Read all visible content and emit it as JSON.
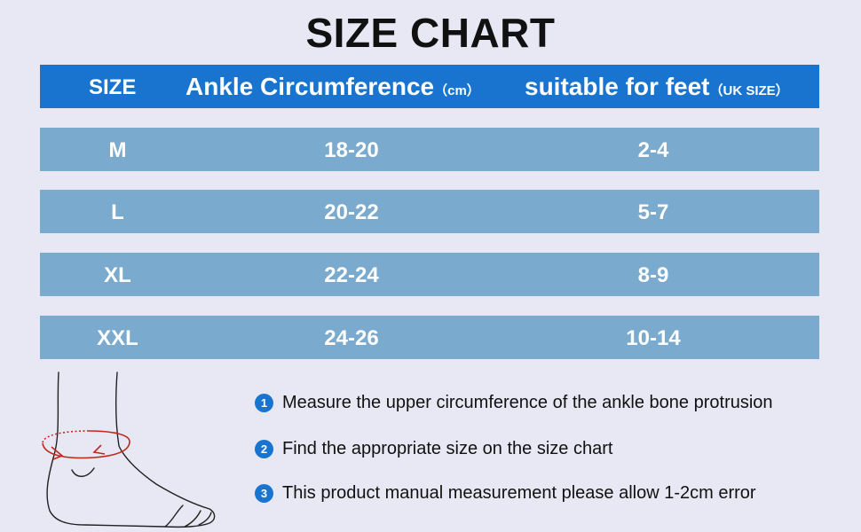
{
  "title": "SIZE CHART",
  "header": {
    "size": "SIZE",
    "ankle": "Ankle Circumference",
    "ankle_unit": "（cm）",
    "feet": "suitable for feet",
    "feet_unit": "（UK SIZE）"
  },
  "rows": [
    {
      "size": "M",
      "ankle": "18-20",
      "feet": "2-4"
    },
    {
      "size": "L",
      "ankle": "20-22",
      "feet": "5-7"
    },
    {
      "size": "XL",
      "ankle": "22-24",
      "feet": "8-9"
    },
    {
      "size": "XXL",
      "ankle": "24-26",
      "feet": "10-14"
    }
  ],
  "steps": [
    {
      "num": "1",
      "text": "Measure the upper circumference of the ankle bone protrusion"
    },
    {
      "num": "2",
      "text": "Find the appropriate size on the size chart"
    },
    {
      "num": "3",
      "text": "This product manual measurement please allow 1-2cm error"
    }
  ],
  "colors": {
    "accent": "#1874cf",
    "row": "#7aaace",
    "background": "#e7e8f4",
    "measure_line": "#c0281e"
  },
  "icons": {
    "illustration": "foot-measurement-illustration"
  }
}
